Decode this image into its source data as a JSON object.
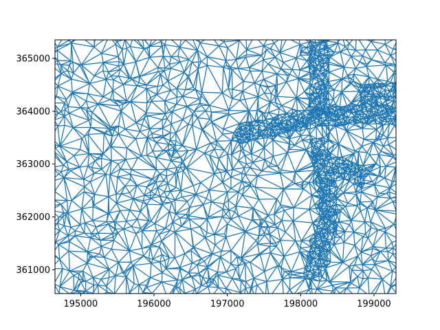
{
  "chart_data": {
    "type": "triplot",
    "title": "",
    "xlabel": "",
    "ylabel": "",
    "xlim": [
      194650,
      199300
    ],
    "ylim": [
      360550,
      365350
    ],
    "xticks": [
      195000,
      196000,
      197000,
      198000,
      199000
    ],
    "yticks": [
      361000,
      362000,
      363000,
      364000,
      365000
    ],
    "grid": false,
    "legend": "none",
    "series": [
      {
        "color": "#1f77b4"
      }
    ],
    "dense_regions": [
      {
        "from": [
          198250,
          365350
        ],
        "to": [
          198250,
          363900
        ]
      },
      {
        "from": [
          198200,
          363900
        ],
        "to": [
          199300,
          363950
        ]
      },
      {
        "from": [
          198200,
          363900
        ],
        "to": [
          197100,
          363550
        ]
      },
      {
        "from": [
          198250,
          363500
        ],
        "to": [
          198400,
          362000
        ]
      },
      {
        "from": [
          198400,
          362000
        ],
        "to": [
          198150,
          360800
        ]
      },
      {
        "from": [
          198450,
          363000
        ],
        "to": [
          198900,
          362700
        ]
      },
      {
        "from": [
          198800,
          364300
        ],
        "to": [
          199300,
          364400
        ]
      }
    ]
  },
  "axes_style": {
    "frame_color": "#000000",
    "tick_color": "#000000"
  }
}
